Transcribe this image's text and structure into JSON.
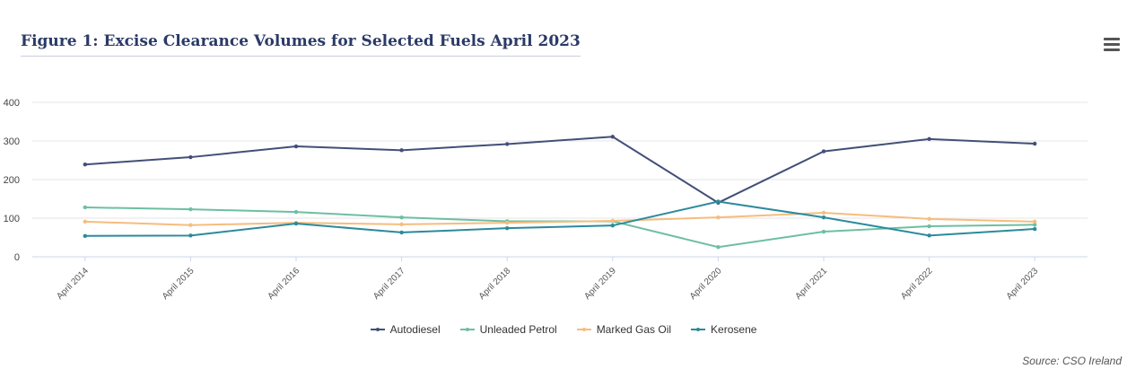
{
  "header": {
    "title": "Figure 1: Excise Clearance Volumes for Selected Fuels April 2023",
    "menu_icon": "hamburger-menu-icon"
  },
  "source": "Source: CSO Ireland",
  "chart_data": {
    "type": "line",
    "title": "Figure 1: Excise Clearance Volumes for Selected Fuels April 2023",
    "xlabel": "",
    "ylabel": "",
    "categories": [
      "April 2014",
      "April 2015",
      "April 2016",
      "April 2017",
      "April 2018",
      "April 2019",
      "April 2020",
      "April 2021",
      "April 2022",
      "April 2023"
    ],
    "ylim": [
      0,
      400
    ],
    "yticks": [
      0,
      100,
      200,
      300,
      400
    ],
    "grid": true,
    "legend_position": "bottom",
    "series": [
      {
        "name": "Autodiesel",
        "color": "#434f78",
        "values": [
          239,
          258,
          286,
          276,
          292,
          311,
          140,
          273,
          305,
          293
        ]
      },
      {
        "name": "Unleaded Petrol",
        "color": "#6dbfa2",
        "values": [
          128,
          123,
          116,
          102,
          92,
          92,
          25,
          65,
          79,
          83
        ]
      },
      {
        "name": "Marked Gas Oil",
        "color": "#f5bd7e",
        "values": [
          91,
          82,
          88,
          84,
          88,
          93,
          102,
          114,
          98,
          91
        ]
      },
      {
        "name": "Kerosene",
        "color": "#2b8a9c",
        "values": [
          54,
          55,
          86,
          63,
          74,
          81,
          143,
          102,
          55,
          72
        ]
      }
    ]
  }
}
